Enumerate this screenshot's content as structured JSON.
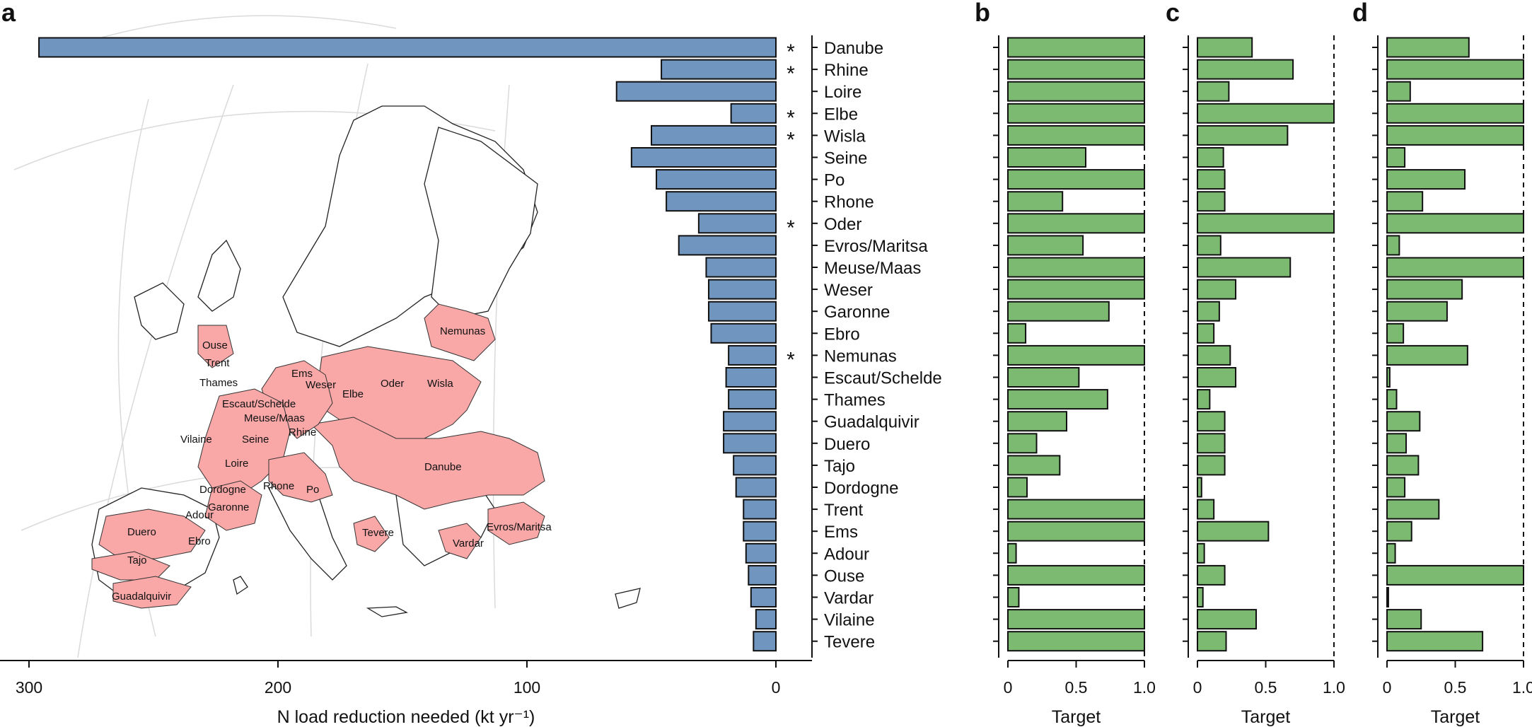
{
  "colors": {
    "blue": "#7095bf",
    "green": "#7cba71",
    "pink": "#f9a7a7",
    "bar_edge": "#111111",
    "grid": "#d9d9d9"
  },
  "panels": {
    "a": "a",
    "b": "b",
    "c": "c",
    "d": "d"
  },
  "chart_data": [
    {
      "type": "bar",
      "orientation": "horizontal",
      "panel": "a",
      "title": "",
      "xlabel": "N load reduction needed (kt yr⁻¹)",
      "xlim": [
        0,
        305
      ],
      "xticks": [
        300,
        200,
        100,
        0
      ],
      "categories": [
        "Danube",
        "Rhine",
        "Loire",
        "Elbe",
        "Wisla",
        "Seine",
        "Po",
        "Rhone",
        "Oder",
        "Evros/Maritsa",
        "Meuse/Maas",
        "Weser",
        "Garonne",
        "Ebro",
        "Nemunas",
        "Escaut/Schelde",
        "Thames",
        "Guadalquivir",
        "Duero",
        "Tajo",
        "Dordogne",
        "Trent",
        "Ems",
        "Adour",
        "Ouse",
        "Vardar",
        "Vilaine",
        "Tevere"
      ],
      "values": [
        296,
        46,
        64,
        18,
        50,
        58,
        48,
        44,
        31,
        39,
        28,
        27,
        27,
        26,
        19,
        20,
        19,
        21,
        21,
        17,
        16,
        13,
        13,
        12,
        11,
        10,
        8,
        9
      ],
      "starred": [
        "Danube",
        "Rhine",
        "Elbe",
        "Wisla",
        "Oder",
        "Nemunas"
      ],
      "star_symbol": "*"
    },
    {
      "type": "bar",
      "orientation": "horizontal",
      "panel": "b",
      "xlabel": "Target",
      "xlim": [
        0,
        1
      ],
      "xticks": [
        "0",
        "0.5",
        "1.0"
      ],
      "values": [
        1,
        1,
        1,
        1,
        1,
        0.57,
        1,
        0.4,
        1,
        0.55,
        1,
        1,
        0.74,
        0.13,
        1,
        0.52,
        0.73,
        0.43,
        0.21,
        0.38,
        0.14,
        1,
        1,
        0.06,
        1,
        0.08,
        1,
        1
      ]
    },
    {
      "type": "bar",
      "orientation": "horizontal",
      "panel": "c",
      "xlabel": "Target",
      "xlim": [
        0,
        1
      ],
      "xticks": [
        "0",
        "0.5",
        "1.0"
      ],
      "values": [
        0.4,
        0.7,
        0.23,
        1,
        0.66,
        0.19,
        0.2,
        0.2,
        1,
        0.17,
        0.68,
        0.28,
        0.16,
        0.12,
        0.24,
        0.28,
        0.09,
        0.2,
        0.2,
        0.2,
        0.03,
        0.12,
        0.52,
        0.05,
        0.2,
        0.04,
        0.43,
        0.21
      ]
    },
    {
      "type": "bar",
      "orientation": "horizontal",
      "panel": "d",
      "xlabel": "Target",
      "xlim": [
        0,
        1
      ],
      "xticks": [
        "0",
        "0.5",
        "1.0"
      ],
      "values": [
        0.6,
        1,
        0.17,
        1,
        1,
        0.13,
        0.57,
        0.26,
        1,
        0.09,
        1,
        0.55,
        0.44,
        0.12,
        0.59,
        0.02,
        0.07,
        0.24,
        0.14,
        0.23,
        0.13,
        0.38,
        0.18,
        0.06,
        1,
        0.01,
        0.25,
        0.7
      ]
    }
  ],
  "map_labels": [
    "Nemunas",
    "Ouse",
    "Trent",
    "Thames",
    "Ems",
    "Weser",
    "Oder",
    "Wisla",
    "Elbe",
    "Escaut/Schelde",
    "Meuse/Maas",
    "Rhine",
    "Vilaine",
    "Seine",
    "Loire",
    "Danube",
    "Dordogne",
    "Rhone",
    "Po",
    "Adour",
    "Garonne",
    "Duero",
    "Ebro",
    "Tevere",
    "Vardar",
    "Evros/Maritsa",
    "Tajo",
    "Guadalquivir"
  ]
}
